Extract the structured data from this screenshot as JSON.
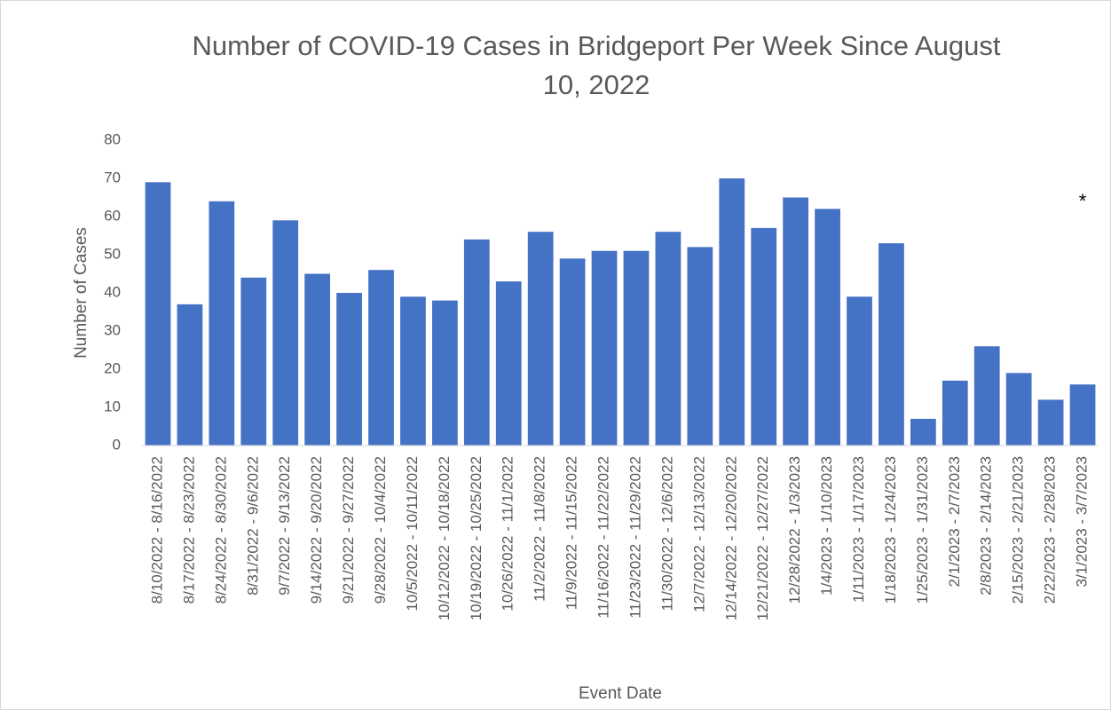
{
  "chart_data": {
    "type": "bar",
    "title": "Number of COVID-19 Cases in Bridgeport Per Week Since August 10, 2022",
    "x_label": "Event Date",
    "y_label": "Number of Cases",
    "annotation": "*",
    "categories": [
      "8/10/2022 - 8/16/2022",
      "8/17/2022 - 8/23/2022",
      "8/24/2022 - 8/30/2022",
      "8/31/2022 - 9/6/2022",
      "9/7/2022 - 9/13/2022",
      "9/14/2022 - 9/20/2022",
      "9/21/2022 - 9/27/2022",
      "9/28/2022 - 10/4/2022",
      "10/5/2022 - 10/11/2022",
      "10/12/2022 - 10/18/2022",
      "10/19/2022 - 10/25/2022",
      "10/26/2022 - 11/1/2022",
      "11/2/2022 - 11/8/2022",
      "11/9/2022 - 11/15/2022",
      "11/16/2022 - 11/22/2022",
      "11/23/2022 - 11/29/2022",
      "11/30/2022 - 12/6/2022",
      "12/7/2022 - 12/13/2022",
      "12/14/2022 - 12/20/2022",
      "12/21/2022 - 12/27/2022",
      "12/28/2022 - 1/3/2023",
      "1/4/2023 - 1/10/2023",
      "1/11/2023 - 1/17/2023",
      "1/18/2023 - 1/24/2023",
      "1/25/2023 - 1/31/2023",
      "2/1/2023 - 2/7/2023",
      "2/8/2023 - 2/14/2023",
      "2/15/2023 - 2/21/2023",
      "2/22/2023 - 2/28/2023",
      "3/1/2023 - 3/7/2023"
    ],
    "values": [
      69,
      37,
      64,
      44,
      59,
      45,
      40,
      46,
      39,
      38,
      54,
      43,
      56,
      49,
      51,
      51,
      56,
      52,
      70,
      57,
      65,
      62,
      39,
      53,
      7,
      17,
      26,
      19,
      12,
      16
    ],
    "color": "#4472c4",
    "ylim": [
      0,
      80
    ],
    "yticks": [
      0,
      10,
      20,
      30,
      40,
      50,
      60,
      70,
      80
    ],
    "grid": false
  }
}
